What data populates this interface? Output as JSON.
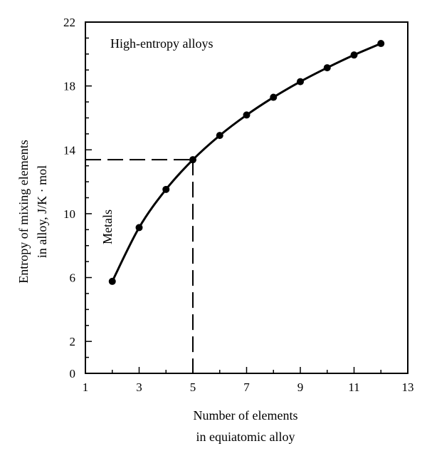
{
  "chart_data": {
    "type": "line",
    "x": [
      2,
      3,
      4,
      5,
      6,
      7,
      8,
      9,
      10,
      11,
      12
    ],
    "series": [
      {
        "values": [
          5.76,
          9.13,
          11.52,
          13.38,
          14.9,
          16.18,
          17.29,
          18.27,
          19.14,
          19.94,
          20.66
        ]
      }
    ],
    "xlabel_lines": [
      "Number of elements",
      "in equiatomic alloy"
    ],
    "ylabel_lines": [
      "Entropy of mixing elements",
      "in alloy, J/K · mol"
    ],
    "xlim": [
      1,
      13
    ],
    "ylim": [
      0,
      22
    ],
    "x_ticks": [
      1,
      3,
      5,
      7,
      9,
      11,
      13
    ],
    "y_ticks": [
      0,
      2,
      6,
      10,
      14,
      18,
      22
    ],
    "x_tick_labels": [
      "1",
      "3",
      "5",
      "7",
      "9",
      "11",
      "13"
    ],
    "y_tick_labels": [
      "0",
      "2",
      "6",
      "10",
      "14",
      "18",
      "22"
    ],
    "x_minor_step": 1,
    "y_minor_step": 1,
    "grid": false,
    "annotations": {
      "high_entropy": "High-entropy alloys",
      "metals": "Metals"
    },
    "reference_lines": {
      "vertical_x": 5,
      "horizontal_y": 13.38,
      "style": "dashed"
    },
    "colors": {
      "line": "#000000",
      "markers": "#000000",
      "axes": "#000000"
    }
  }
}
